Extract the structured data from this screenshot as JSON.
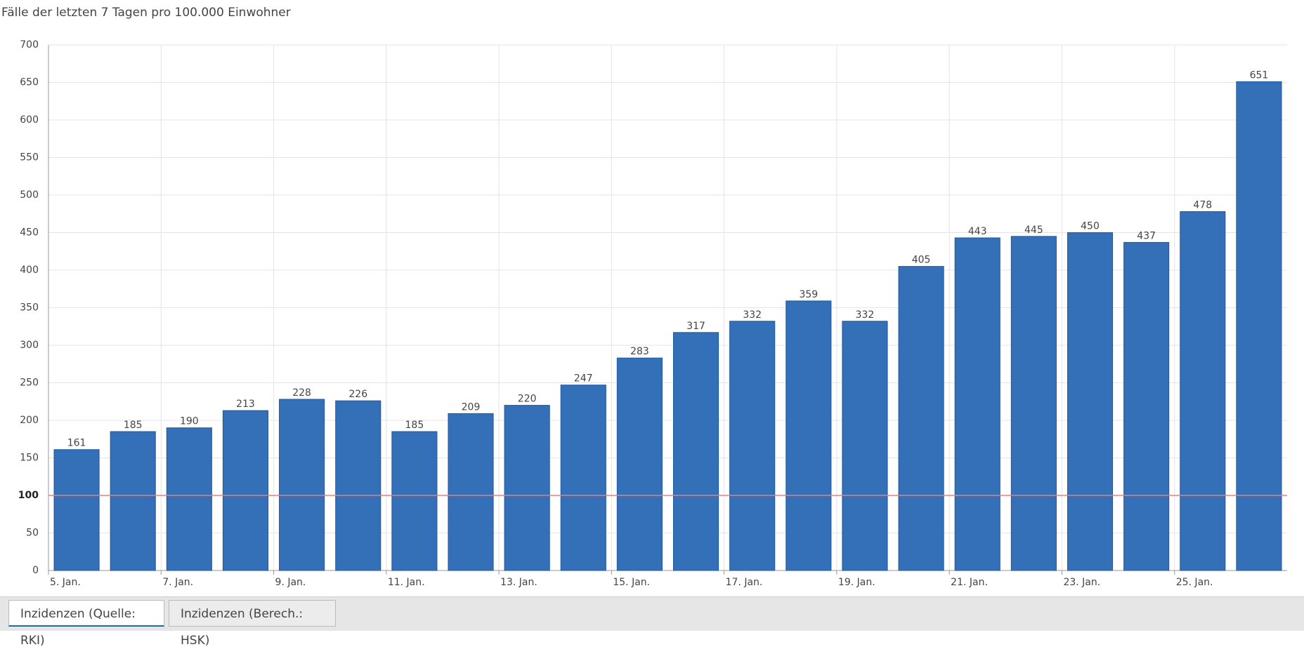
{
  "chart_data": {
    "type": "bar",
    "title": "Fälle der letzten 7 Tagen pro 100.000 Einwohner",
    "categories": [
      "5. Jan.",
      null,
      "7. Jan.",
      null,
      "9. Jan.",
      null,
      "11. Jan.",
      null,
      "13. Jan.",
      null,
      "15. Jan.",
      null,
      "17. Jan.",
      null,
      "19. Jan.",
      null,
      "21. Jan.",
      null,
      "23. Jan.",
      null,
      "25. Jan.",
      null
    ],
    "values": [
      161,
      185,
      190,
      213,
      228,
      226,
      185,
      209,
      220,
      247,
      283,
      317,
      332,
      359,
      332,
      405,
      443,
      445,
      450,
      437,
      478,
      651
    ],
    "color": "#3370b8",
    "ylim": [
      0,
      700
    ],
    "yticks": [
      0,
      50,
      100,
      150,
      200,
      250,
      300,
      350,
      400,
      450,
      500,
      550,
      600,
      650,
      700
    ],
    "grid": true,
    "reference_line": {
      "value": 100,
      "color": "#e08080"
    }
  },
  "tabs": [
    "Inzidenzen (Quelle: RKI)",
    "Inzidenzen (Berech.: HSK)"
  ]
}
